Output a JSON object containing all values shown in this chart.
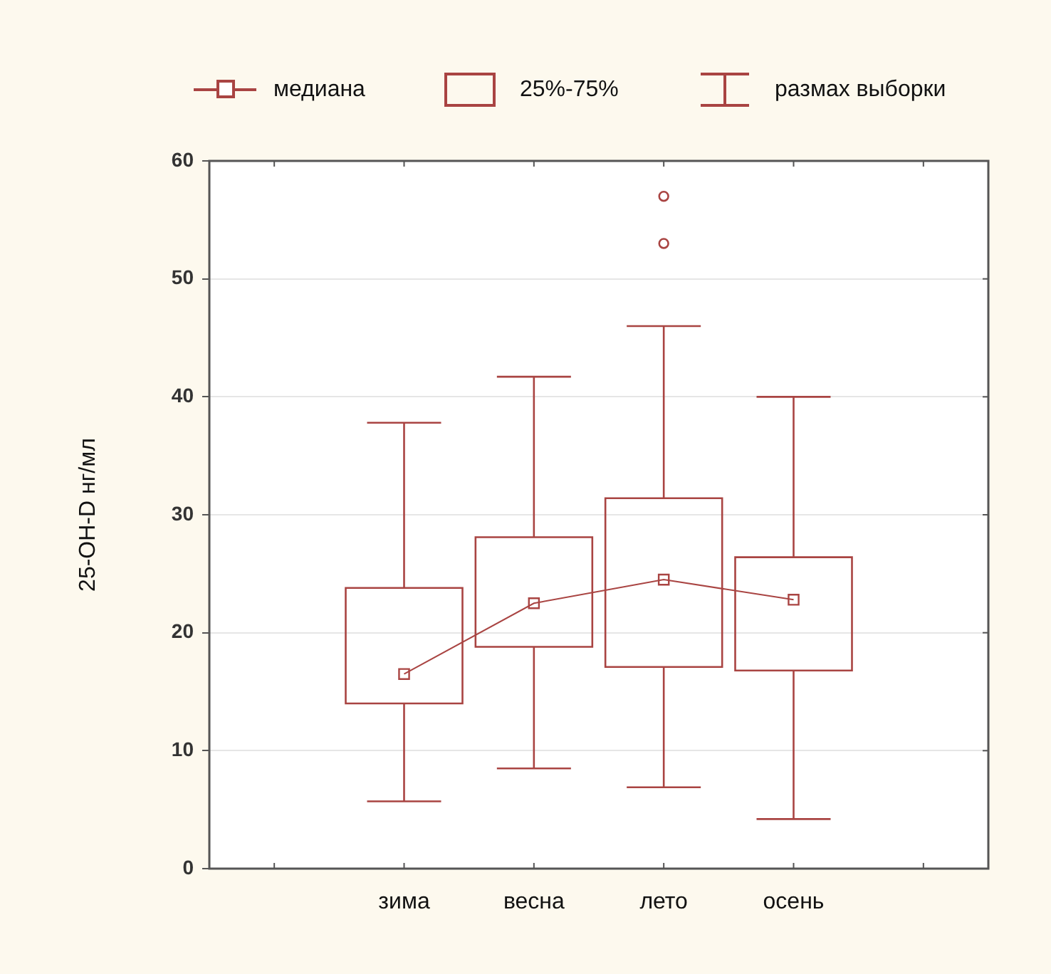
{
  "chart_data": {
    "type": "box",
    "ylabel": "25-OH-D нг/мл",
    "categories": [
      "зима",
      "весна",
      "лето",
      "осень"
    ],
    "series": [
      {
        "type": "line",
        "name": "медиана",
        "color": "#a94442",
        "values": [
          16.5,
          22.5,
          24.5,
          22.8
        ]
      },
      {
        "type": "box",
        "name": "25%-75%",
        "color": "#a94442",
        "boxes": [
          {
            "low": 5.7,
            "q1": 14.0,
            "median": 16.5,
            "q3": 23.8,
            "high": 37.8
          },
          {
            "low": 8.5,
            "q1": 18.8,
            "median": 22.5,
            "q3": 28.1,
            "high": 41.7
          },
          {
            "low": 6.9,
            "q1": 17.1,
            "median": 24.5,
            "q3": 31.4,
            "high": 46.0,
            "outliers": [
              53,
              57
            ]
          },
          {
            "low": 4.2,
            "q1": 16.8,
            "median": 22.8,
            "q3": 26.4,
            "high": 40.0
          }
        ]
      }
    ],
    "annotations": [
      "размах выборки"
    ],
    "ylim": [
      0,
      60
    ],
    "yticks": [
      0,
      10,
      20,
      30,
      40,
      50,
      60
    ],
    "grid": "y",
    "legend": "top"
  }
}
